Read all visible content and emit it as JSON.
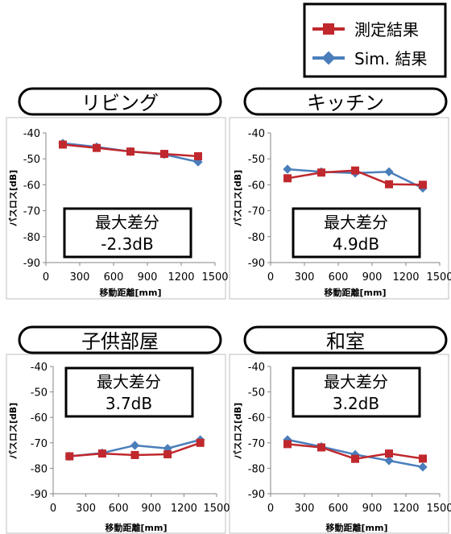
{
  "legend": {
    "items": [
      {
        "label": "測定結果",
        "color": "#c0282d",
        "marker": "square"
      },
      {
        "label": "Sim. 結果",
        "color": "#4a7ebb",
        "marker": "diamond"
      }
    ]
  },
  "chart_data": [
    {
      "type": "line",
      "title": "リビング",
      "annotation": {
        "title": "最大差分",
        "value": "-2.3dB"
      },
      "xlabel": "移動距離[mm]",
      "ylabel": "パスロス[dB]",
      "xlim": [
        0,
        1500
      ],
      "ylim": [
        -90,
        -40
      ],
      "xticks": [
        0,
        300,
        600,
        900,
        1200,
        1500
      ],
      "yticks": [
        -40,
        -50,
        -60,
        -70,
        -80,
        -90
      ],
      "grid": false,
      "x": [
        150,
        450,
        750,
        1050,
        1350
      ],
      "series": [
        {
          "name": "測定結果",
          "values": [
            -44.5,
            -45.8,
            -47.2,
            -48.1,
            -49.0
          ]
        },
        {
          "name": "Sim. 結果",
          "values": [
            -44.0,
            -45.4,
            -47.2,
            -48.3,
            -51.2
          ]
        }
      ]
    },
    {
      "type": "line",
      "title": "キッチン",
      "annotation": {
        "title": "最大差分",
        "value": "4.9dB"
      },
      "xlabel": "移動距離[mm]",
      "ylabel": "パスロス[dB]",
      "xlim": [
        0,
        1500
      ],
      "ylim": [
        -90,
        -40
      ],
      "xticks": [
        0,
        300,
        600,
        900,
        1200,
        1500
      ],
      "yticks": [
        -40,
        -50,
        -60,
        -70,
        -80,
        -90
      ],
      "grid": false,
      "x": [
        150,
        450,
        750,
        1050,
        1350
      ],
      "series": [
        {
          "name": "測定結果",
          "values": [
            -57.5,
            -55.3,
            -54.5,
            -59.8,
            -60.0
          ]
        },
        {
          "name": "Sim. 結果",
          "values": [
            -54.0,
            -55.0,
            -55.5,
            -55.0,
            -61.3
          ]
        }
      ]
    },
    {
      "type": "line",
      "title": "子供部屋",
      "annotation": {
        "title": "最大差分",
        "value": "3.7dB"
      },
      "xlabel": "移動距離[mm]",
      "ylabel": "パスロス[dB]",
      "xlim": [
        0,
        1500
      ],
      "ylim": [
        -90,
        -40
      ],
      "xticks": [
        0,
        300,
        600,
        900,
        1200,
        1500
      ],
      "yticks": [
        -40,
        -50,
        -60,
        -70,
        -80,
        -90
      ],
      "grid": false,
      "x": [
        150,
        450,
        750,
        1050,
        1350
      ],
      "series": [
        {
          "name": "測定結果",
          "values": [
            -75.3,
            -74.2,
            -74.8,
            -74.5,
            -70.0
          ]
        },
        {
          "name": "Sim. 結果",
          "values": [
            -75.3,
            -74.0,
            -71.0,
            -72.2,
            -68.8
          ]
        }
      ]
    },
    {
      "type": "line",
      "title": "和室",
      "annotation": {
        "title": "最大差分",
        "value": "3.2dB"
      },
      "xlabel": "移動距離[mm]",
      "ylabel": "パスロス[dB]",
      "xlim": [
        0,
        1500
      ],
      "ylim": [
        -90,
        -40
      ],
      "xticks": [
        0,
        300,
        600,
        900,
        1200,
        1500
      ],
      "yticks": [
        -40,
        -50,
        -60,
        -70,
        -80,
        -90
      ],
      "grid": false,
      "x": [
        150,
        450,
        750,
        1050,
        1350
      ],
      "series": [
        {
          "name": "測定結果",
          "values": [
            -70.5,
            -71.8,
            -76.3,
            -74.2,
            -76.2
          ]
        },
        {
          "name": "Sim. 結果",
          "values": [
            -68.8,
            -71.5,
            -74.6,
            -77.0,
            -79.5
          ]
        }
      ]
    }
  ]
}
